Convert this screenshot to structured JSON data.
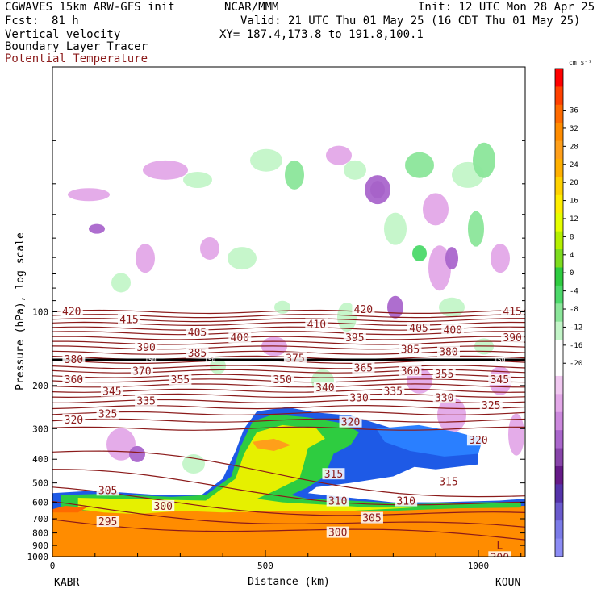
{
  "header": {
    "model": "CGWAVES 15km ARW-GFS init",
    "forecast_label": "Fcst:",
    "forecast_hours": "81 h",
    "center": "NCAR/MMM",
    "init": "Init: 12 UTC Mon 28 Apr 25",
    "valid": "Valid: 21 UTC Thu 01 May 25 (16 CDT Thu 01 May 25)",
    "xy": "XY= 187.4,173.8 to 191.8,100.1",
    "field1": "Vertical velocity",
    "field2": "Boundary Layer Tracer",
    "field3": "Potential Temperature",
    "field3_color": "#8b1a1a"
  },
  "chart_data": {
    "type": "heatmap",
    "xlabel": "Distance (km)",
    "ylabel": "Pressure (hPa), log scale",
    "xlim": [
      0,
      1110
    ],
    "ylim": [
      1000,
      10
    ],
    "x_ticks": [
      0,
      500,
      1000
    ],
    "y_ticks": [
      100,
      200,
      300,
      400,
      500,
      600,
      700,
      800,
      900,
      1000
    ],
    "left_station": "KABR",
    "right_station": "KOUN",
    "colorbar": {
      "unit": "cm s⁻¹",
      "labels": [
        "36",
        "32",
        "28",
        "24",
        "20",
        "16",
        "12",
        "8",
        "4",
        "0",
        "-4",
        "-8",
        "-12",
        "-16",
        "-20"
      ],
      "colors": [
        "#ff0000",
        "#ff4000",
        "#ff6a00",
        "#ff8c00",
        "#ff9f1a",
        "#ffb000",
        "#ffd200",
        "#ffee00",
        "#e6ff00",
        "#b4f000",
        "#7ddc1e",
        "#2ecc40",
        "#4cd96a",
        "#8be69a",
        "#c3f5c8",
        "#ffffff",
        "#ffffff",
        "#f0c8f0",
        "#e3a8e8",
        "#cc88dd",
        "#aa66cc",
        "#8844aa",
        "#661a88",
        "#5533aa",
        "#6a5acd",
        "#7b7be8",
        "#8c8cf5"
      ]
    },
    "theta_labels": [
      {
        "v": "420",
        "x": 45,
        "p": 100
      },
      {
        "v": "415",
        "x": 180,
        "p": 108
      },
      {
        "v": "410",
        "x": 620,
        "p": 113
      },
      {
        "v": "420",
        "x": 730,
        "p": 98
      },
      {
        "v": "415",
        "x": 1080,
        "p": 100
      },
      {
        "v": "405",
        "x": 340,
        "p": 122
      },
      {
        "v": "400",
        "x": 440,
        "p": 128
      },
      {
        "v": "405",
        "x": 860,
        "p": 117
      },
      {
        "v": "400",
        "x": 940,
        "p": 119
      },
      {
        "v": "390",
        "x": 220,
        "p": 140
      },
      {
        "v": "395",
        "x": 710,
        "p": 128
      },
      {
        "v": "390",
        "x": 1080,
        "p": 128
      },
      {
        "v": "385",
        "x": 340,
        "p": 148
      },
      {
        "v": "385",
        "x": 840,
        "p": 143
      },
      {
        "v": "380",
        "x": 930,
        "p": 146
      },
      {
        "v": "380",
        "x": 50,
        "p": 157
      },
      {
        "v": "375",
        "x": 570,
        "p": 155
      },
      {
        "v": "370",
        "x": 210,
        "p": 175
      },
      {
        "v": "365",
        "x": 730,
        "p": 170
      },
      {
        "v": "360",
        "x": 50,
        "p": 190
      },
      {
        "v": "360",
        "x": 840,
        "p": 175
      },
      {
        "v": "355",
        "x": 300,
        "p": 190
      },
      {
        "v": "355",
        "x": 920,
        "p": 180
      },
      {
        "v": "350",
        "x": 540,
        "p": 190
      },
      {
        "v": "345",
        "x": 140,
        "p": 212
      },
      {
        "v": "345",
        "x": 1050,
        "p": 190
      },
      {
        "v": "340",
        "x": 640,
        "p": 205
      },
      {
        "v": "335",
        "x": 220,
        "p": 232
      },
      {
        "v": "335",
        "x": 800,
        "p": 212
      },
      {
        "v": "330",
        "x": 720,
        "p": 225
      },
      {
        "v": "330",
        "x": 920,
        "p": 225
      },
      {
        "v": "325",
        "x": 130,
        "p": 262
      },
      {
        "v": "325",
        "x": 1030,
        "p": 242
      },
      {
        "v": "320",
        "x": 50,
        "p": 277
      },
      {
        "v": "320",
        "x": 700,
        "p": 283
      },
      {
        "v": "320",
        "x": 1000,
        "p": 336
      },
      {
        "v": "315",
        "x": 660,
        "p": 462
      },
      {
        "v": "315",
        "x": 930,
        "p": 495
      },
      {
        "v": "310",
        "x": 670,
        "p": 595
      },
      {
        "v": "310",
        "x": 830,
        "p": 595
      },
      {
        "v": "305",
        "x": 130,
        "p": 538
      },
      {
        "v": "305",
        "x": 750,
        "p": 698
      },
      {
        "v": "300",
        "x": 260,
        "p": 625
      },
      {
        "v": "300",
        "x": 670,
        "p": 800
      },
      {
        "v": "300",
        "x": 1050,
        "p": 1010
      },
      {
        "v": "295",
        "x": 130,
        "p": 722
      }
    ],
    "tropopause_labels": [
      "150",
      "150",
      "150"
    ],
    "low_marker": "L"
  }
}
